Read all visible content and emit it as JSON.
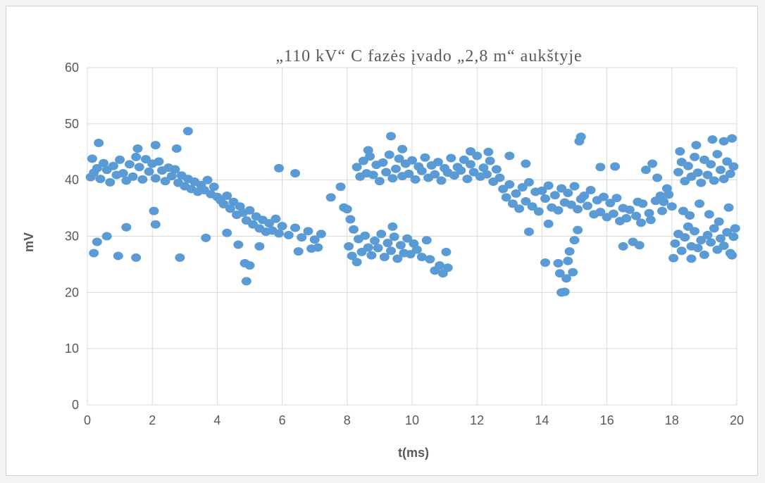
{
  "chart_data": {
    "type": "scatter",
    "title": "„110 kV“  C fazės įvado „2,8 m“ aukštyje",
    "xlabel": "t(ms)",
    "ylabel": "mV",
    "xlim": [
      0,
      20
    ],
    "ylim": [
      0,
      60
    ],
    "x_ticks": [
      "0",
      "2",
      "4",
      "6",
      "8",
      "10",
      "12",
      "14",
      "16",
      "18",
      "20"
    ],
    "y_ticks": [
      "0",
      "10",
      "20",
      "30",
      "40",
      "50",
      "60"
    ],
    "grid": true,
    "legend": "none",
    "marker_color": "#5b9bd5",
    "series": [
      {
        "points": [
          [
            0.1,
            40.5
          ],
          [
            0.2,
            41.3
          ],
          [
            0.3,
            42.1
          ],
          [
            0.4,
            40.2
          ],
          [
            0.5,
            43.0
          ],
          [
            0.6,
            41.8
          ],
          [
            0.7,
            39.6
          ],
          [
            0.8,
            42.5
          ],
          [
            0.9,
            40.9
          ],
          [
            1.0,
            43.6
          ],
          [
            1.1,
            41.2
          ],
          [
            1.2,
            39.9
          ],
          [
            1.3,
            42.8
          ],
          [
            1.4,
            40.6
          ],
          [
            1.5,
            44.1
          ],
          [
            1.6,
            42.3
          ],
          [
            1.7,
            40.1
          ],
          [
            1.8,
            43.7
          ],
          [
            1.9,
            41.5
          ],
          [
            2.0,
            42.9
          ],
          [
            2.1,
            40.3
          ],
          [
            2.2,
            43.3
          ],
          [
            2.3,
            41.7
          ],
          [
            2.4,
            39.8
          ],
          [
            2.5,
            42.2
          ],
          [
            2.6,
            40.7
          ],
          [
            2.7,
            41.9
          ],
          [
            2.8,
            39.5
          ],
          [
            2.9,
            40.8
          ],
          [
            3.0,
            38.9
          ],
          [
            3.1,
            40.2
          ],
          [
            3.2,
            38.4
          ],
          [
            3.3,
            39.7
          ],
          [
            3.4,
            37.9
          ],
          [
            3.5,
            39.1
          ],
          [
            3.6,
            38.2
          ],
          [
            3.7,
            40.0
          ],
          [
            3.8,
            37.5
          ],
          [
            3.9,
            38.8
          ],
          [
            4.0,
            37.0
          ],
          [
            4.1,
            36.4
          ],
          [
            4.2,
            35.7
          ],
          [
            4.3,
            37.2
          ],
          [
            4.4,
            34.9
          ],
          [
            4.5,
            36.1
          ],
          [
            4.6,
            33.8
          ],
          [
            4.7,
            35.3
          ],
          [
            4.8,
            34.2
          ],
          [
            4.9,
            32.8
          ],
          [
            5.0,
            34.6
          ],
          [
            5.1,
            32.1
          ],
          [
            5.2,
            33.5
          ],
          [
            5.3,
            31.4
          ],
          [
            5.4,
            32.9
          ],
          [
            5.5,
            30.8
          ],
          [
            5.6,
            32.3
          ],
          [
            5.7,
            31.0
          ],
          [
            5.8,
            33.1
          ],
          [
            5.9,
            30.5
          ],
          [
            6.0,
            31.8
          ],
          [
            6.2,
            30.2
          ],
          [
            6.4,
            31.5
          ],
          [
            6.6,
            29.8
          ],
          [
            6.8,
            30.9
          ],
          [
            7.0,
            29.4
          ],
          [
            7.2,
            30.4
          ],
          [
            0.15,
            43.8
          ],
          [
            0.35,
            46.6
          ],
          [
            1.55,
            45.6
          ],
          [
            2.1,
            46.2
          ],
          [
            3.1,
            48.7
          ],
          [
            2.75,
            45.6
          ],
          [
            0.3,
            29.0
          ],
          [
            0.2,
            27.0
          ],
          [
            0.6,
            30.0
          ],
          [
            0.95,
            26.5
          ],
          [
            1.2,
            31.6
          ],
          [
            1.5,
            26.2
          ],
          [
            2.05,
            34.5
          ],
          [
            2.1,
            32.1
          ],
          [
            2.85,
            26.2
          ],
          [
            3.65,
            29.7
          ],
          [
            4.3,
            30.6
          ],
          [
            4.65,
            28.5
          ],
          [
            4.85,
            25.2
          ],
          [
            4.9,
            22.0
          ],
          [
            5.0,
            24.8
          ],
          [
            5.3,
            28.2
          ],
          [
            5.9,
            42.1
          ],
          [
            6.4,
            41.2
          ],
          [
            6.5,
            27.3
          ],
          [
            6.9,
            27.8
          ],
          [
            7.1,
            28.0
          ],
          [
            7.5,
            36.9
          ],
          [
            7.8,
            38.8
          ],
          [
            7.9,
            35.1
          ],
          [
            8.0,
            34.8
          ],
          [
            8.1,
            33.0
          ],
          [
            8.2,
            31.2
          ],
          [
            8.05,
            28.2
          ],
          [
            8.15,
            26.5
          ],
          [
            8.3,
            25.4
          ],
          [
            8.35,
            29.5
          ],
          [
            8.45,
            27.2
          ],
          [
            8.55,
            30.1
          ],
          [
            8.65,
            28.0
          ],
          [
            8.75,
            26.6
          ],
          [
            8.85,
            29.2
          ],
          [
            8.95,
            27.9
          ],
          [
            9.05,
            30.4
          ],
          [
            9.15,
            26.3
          ],
          [
            9.25,
            28.8
          ],
          [
            9.35,
            27.4
          ],
          [
            9.45,
            29.9
          ],
          [
            9.55,
            26.0
          ],
          [
            9.65,
            28.4
          ],
          [
            9.75,
            27.0
          ],
          [
            9.85,
            29.6
          ],
          [
            9.95,
            26.8
          ],
          [
            10.05,
            28.7
          ],
          [
            10.15,
            27.6
          ],
          [
            10.3,
            26.3
          ],
          [
            10.45,
            29.3
          ],
          [
            10.55,
            25.9
          ],
          [
            10.7,
            23.9
          ],
          [
            10.85,
            24.8
          ],
          [
            10.95,
            23.4
          ],
          [
            11.1,
            24.4
          ],
          [
            11.05,
            27.2
          ],
          [
            9.4,
            31.7
          ],
          [
            8.3,
            42.3
          ],
          [
            8.4,
            40.6
          ],
          [
            8.5,
            43.4
          ],
          [
            8.6,
            41.2
          ],
          [
            8.7,
            44.2
          ],
          [
            8.8,
            40.9
          ],
          [
            8.9,
            42.7
          ],
          [
            9.0,
            39.8
          ],
          [
            9.1,
            43.1
          ],
          [
            9.2,
            41.4
          ],
          [
            9.3,
            44.5
          ],
          [
            9.4,
            40.3
          ],
          [
            9.5,
            42.0
          ],
          [
            9.6,
            43.8
          ],
          [
            9.7,
            40.7
          ],
          [
            9.8,
            42.9
          ],
          [
            9.9,
            41.1
          ],
          [
            10.0,
            43.5
          ],
          [
            10.1,
            40.1
          ],
          [
            10.2,
            42.4
          ],
          [
            10.3,
            41.6
          ],
          [
            10.4,
            44.0
          ],
          [
            10.5,
            40.4
          ],
          [
            10.6,
            42.6
          ],
          [
            10.7,
            41.0
          ],
          [
            10.8,
            43.2
          ],
          [
            10.9,
            39.9
          ],
          [
            11.0,
            42.1
          ],
          [
            11.1,
            41.3
          ],
          [
            11.2,
            43.9
          ],
          [
            11.3,
            40.8
          ],
          [
            11.4,
            42.3
          ],
          [
            11.5,
            41.7
          ],
          [
            11.6,
            43.6
          ],
          [
            11.7,
            40.2
          ],
          [
            11.8,
            42.8
          ],
          [
            11.9,
            41.4
          ],
          [
            12.0,
            44.3
          ],
          [
            12.1,
            40.6
          ],
          [
            12.2,
            42.2
          ],
          [
            12.3,
            41.0
          ],
          [
            12.4,
            43.4
          ],
          [
            12.5,
            39.7
          ],
          [
            12.6,
            41.9
          ],
          [
            12.7,
            40.4
          ],
          [
            9.35,
            47.8
          ],
          [
            9.7,
            45.5
          ],
          [
            8.65,
            45.3
          ],
          [
            11.8,
            45.1
          ],
          [
            12.35,
            45.0
          ],
          [
            12.8,
            38.4
          ],
          [
            12.9,
            36.9
          ],
          [
            13.0,
            39.2
          ],
          [
            13.1,
            35.8
          ],
          [
            13.2,
            37.6
          ],
          [
            13.3,
            34.9
          ],
          [
            13.4,
            38.7
          ],
          [
            13.5,
            36.2
          ],
          [
            13.6,
            39.6
          ],
          [
            13.7,
            35.3
          ],
          [
            13.8,
            37.9
          ],
          [
            13.9,
            34.4
          ],
          [
            14.0,
            38.1
          ],
          [
            14.1,
            36.7
          ],
          [
            14.2,
            39.0
          ],
          [
            14.3,
            35.1
          ],
          [
            14.4,
            37.3
          ],
          [
            14.5,
            34.6
          ],
          [
            14.6,
            38.5
          ],
          [
            14.7,
            36.0
          ],
          [
            14.8,
            37.7
          ],
          [
            14.9,
            35.6
          ],
          [
            15.0,
            38.9
          ],
          [
            15.1,
            34.8
          ],
          [
            15.2,
            36.6
          ],
          [
            15.3,
            37.2
          ],
          [
            15.4,
            35.4
          ],
          [
            15.5,
            38.2
          ],
          [
            15.6,
            33.9
          ],
          [
            15.7,
            36.4
          ],
          [
            15.8,
            34.3
          ],
          [
            15.9,
            37.0
          ],
          [
            16.0,
            33.4
          ],
          [
            16.1,
            35.9
          ],
          [
            16.2,
            34.0
          ],
          [
            16.3,
            36.8
          ],
          [
            16.4,
            32.7
          ],
          [
            16.5,
            35.0
          ],
          [
            16.6,
            33.2
          ],
          [
            16.7,
            34.7
          ],
          [
            16.9,
            33.6
          ],
          [
            17.1,
            35.8
          ],
          [
            17.3,
            34.1
          ],
          [
            17.5,
            36.3
          ],
          [
            17.7,
            34.5
          ],
          [
            17.9,
            37.4
          ],
          [
            13.0,
            44.3
          ],
          [
            13.5,
            42.9
          ],
          [
            13.6,
            30.8
          ],
          [
            14.2,
            32.2
          ],
          [
            14.1,
            25.3
          ],
          [
            14.5,
            25.2
          ],
          [
            14.55,
            23.4
          ],
          [
            14.6,
            20.0
          ],
          [
            14.7,
            20.1
          ],
          [
            14.75,
            22.5
          ],
          [
            14.8,
            25.6
          ],
          [
            14.85,
            27.3
          ],
          [
            14.95,
            23.6
          ],
          [
            15.0,
            29.3
          ],
          [
            15.1,
            31.1
          ],
          [
            15.15,
            46.9
          ],
          [
            15.2,
            47.7
          ],
          [
            15.8,
            42.3
          ],
          [
            16.25,
            42.4
          ],
          [
            16.5,
            28.2
          ],
          [
            16.8,
            29.0
          ],
          [
            17.0,
            28.4
          ],
          [
            17.2,
            41.8
          ],
          [
            17.4,
            42.9
          ],
          [
            17.55,
            40.4
          ],
          [
            17.65,
            37.2
          ],
          [
            17.75,
            36.1
          ],
          [
            17.85,
            38.5
          ],
          [
            18.0,
            35.3
          ],
          [
            18.05,
            26.1
          ],
          [
            18.1,
            28.7
          ],
          [
            18.2,
            30.4
          ],
          [
            18.3,
            27.4
          ],
          [
            18.4,
            29.8
          ],
          [
            18.5,
            31.7
          ],
          [
            18.6,
            28.2
          ],
          [
            18.7,
            30.9
          ],
          [
            18.8,
            27.9
          ],
          [
            18.9,
            29.3
          ],
          [
            19.0,
            26.7
          ],
          [
            19.1,
            30.2
          ],
          [
            19.2,
            28.9
          ],
          [
            19.3,
            31.4
          ],
          [
            19.4,
            27.6
          ],
          [
            19.5,
            29.6
          ],
          [
            19.6,
            28.3
          ],
          [
            19.7,
            30.7
          ],
          [
            19.8,
            27.0
          ],
          [
            19.9,
            29.9
          ],
          [
            19.85,
            26.6
          ],
          [
            18.6,
            26.0
          ],
          [
            18.2,
            41.4
          ],
          [
            18.3,
            43.2
          ],
          [
            18.4,
            39.8
          ],
          [
            18.5,
            42.5
          ],
          [
            18.6,
            40.6
          ],
          [
            18.7,
            44.1
          ],
          [
            18.8,
            41.3
          ],
          [
            18.9,
            39.5
          ],
          [
            19.0,
            43.6
          ],
          [
            19.1,
            40.9
          ],
          [
            19.2,
            42.8
          ],
          [
            19.3,
            39.9
          ],
          [
            19.4,
            44.6
          ],
          [
            19.5,
            41.8
          ],
          [
            19.6,
            40.2
          ],
          [
            19.7,
            43.3
          ],
          [
            19.8,
            41.1
          ],
          [
            19.9,
            42.4
          ],
          [
            18.25,
            45.1
          ],
          [
            18.75,
            46.2
          ],
          [
            19.25,
            47.2
          ],
          [
            19.6,
            46.9
          ],
          [
            19.85,
            47.4
          ],
          [
            18.35,
            34.5
          ],
          [
            18.55,
            33.7
          ],
          [
            18.85,
            35.8
          ],
          [
            19.15,
            33.9
          ],
          [
            19.45,
            32.6
          ],
          [
            19.75,
            35.1
          ],
          [
            19.95,
            31.4
          ],
          [
            17.35,
            32.9
          ],
          [
            17.05,
            32.4
          ],
          [
            16.95,
            36.1
          ]
        ]
      }
    ]
  }
}
